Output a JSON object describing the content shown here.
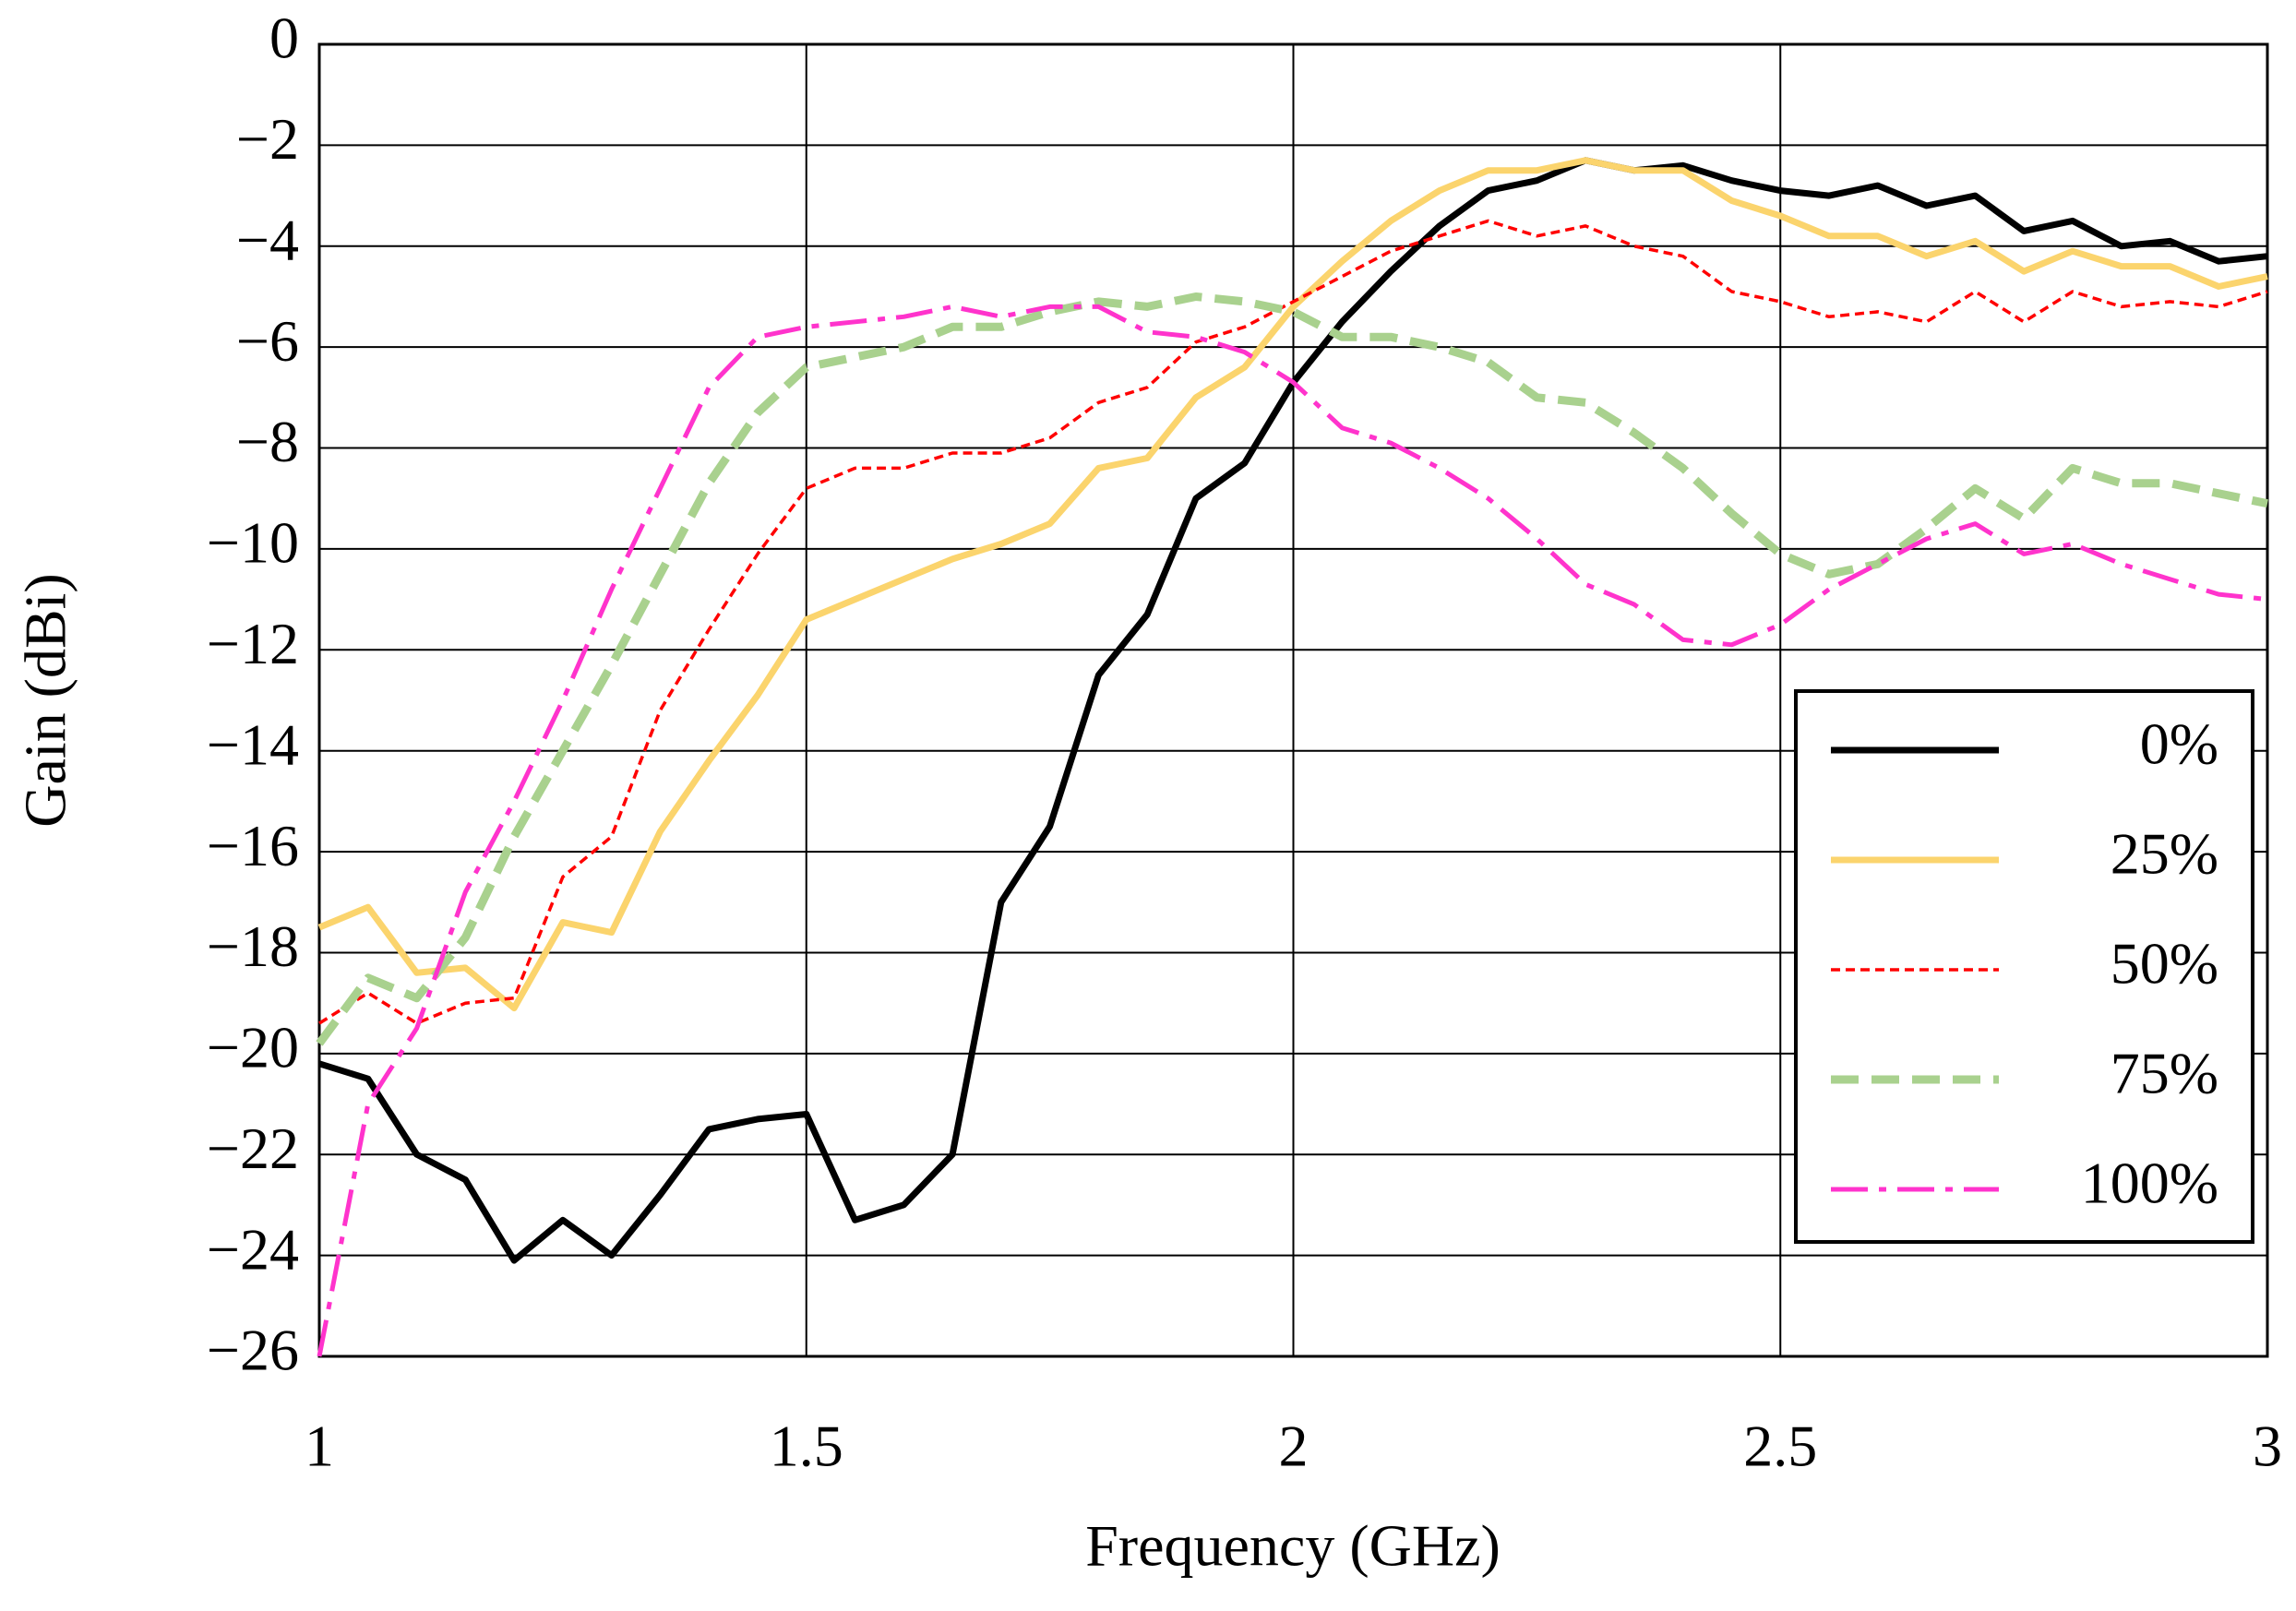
{
  "chart_data": {
    "type": "line",
    "x_label": "Frequency (GHz)",
    "y_label": "Gain (dBi)",
    "x": [
      1.0,
      1.05,
      1.1,
      1.15,
      1.2,
      1.25,
      1.3,
      1.35,
      1.4,
      1.45,
      1.5,
      1.55,
      1.6,
      1.65,
      1.7,
      1.75,
      1.8,
      1.85,
      1.9,
      1.95,
      2.0,
      2.05,
      2.1,
      2.15,
      2.2,
      2.25,
      2.3,
      2.35,
      2.4,
      2.45,
      2.5,
      2.55,
      2.6,
      2.65,
      2.7,
      2.75,
      2.8,
      2.85,
      2.9,
      2.95,
      3.0
    ],
    "series": [
      {
        "name": "0%",
        "color": "#000000",
        "dash": "solid",
        "values": [
          -20.2,
          -20.5,
          -22.0,
          -22.5,
          -24.1,
          -23.3,
          -24.0,
          -22.8,
          -21.5,
          -21.3,
          -21.2,
          -23.3,
          -23.0,
          -22.0,
          -17.0,
          -15.5,
          -12.5,
          -11.3,
          -9.0,
          -8.3,
          -6.7,
          -5.5,
          -4.5,
          -3.6,
          -2.9,
          -2.7,
          -2.3,
          -2.5,
          -2.4,
          -2.7,
          -2.9,
          -3.0,
          -2.8,
          -3.2,
          -3.0,
          -3.7,
          -3.5,
          -4.0,
          -3.9,
          -4.3,
          -4.2
        ]
      },
      {
        "name": "25%",
        "color": "#fbd46d",
        "dash": "solid",
        "values": [
          -17.5,
          -17.1,
          -18.4,
          -18.3,
          -19.1,
          -17.4,
          -17.6,
          -15.6,
          -14.2,
          -12.9,
          -11.4,
          -11.0,
          -10.6,
          -10.2,
          -9.9,
          -9.5,
          -8.4,
          -8.2,
          -7.0,
          -6.4,
          -5.2,
          -4.3,
          -3.5,
          -2.9,
          -2.5,
          -2.5,
          -2.3,
          -2.5,
          -2.5,
          -3.1,
          -3.4,
          -3.8,
          -3.8,
          -4.2,
          -3.9,
          -4.5,
          -4.1,
          -4.4,
          -4.4,
          -4.8,
          -4.6
        ]
      },
      {
        "name": "50%",
        "color": "#ff0000",
        "dash": "dotted",
        "values": [
          -19.4,
          -18.8,
          -19.4,
          -19.0,
          -18.9,
          -16.5,
          -15.7,
          -13.2,
          -11.6,
          -10.1,
          -8.8,
          -8.4,
          -8.4,
          -8.1,
          -8.1,
          -7.8,
          -7.1,
          -6.8,
          -5.9,
          -5.6,
          -5.1,
          -4.6,
          -4.1,
          -3.8,
          -3.5,
          -3.8,
          -3.6,
          -4.0,
          -4.2,
          -4.9,
          -5.1,
          -5.4,
          -5.3,
          -5.5,
          -4.9,
          -5.5,
          -4.9,
          -5.2,
          -5.1,
          -5.2,
          -4.9
        ]
      },
      {
        "name": "75%",
        "color": "#a9d18e",
        "dash": "dashed",
        "values": [
          -19.8,
          -18.5,
          -18.9,
          -17.7,
          -15.7,
          -14.0,
          -12.3,
          -10.5,
          -8.7,
          -7.3,
          -6.4,
          -6.2,
          -6.0,
          -5.6,
          -5.6,
          -5.3,
          -5.1,
          -5.2,
          -5.0,
          -5.1,
          -5.3,
          -5.8,
          -5.8,
          -6.0,
          -6.3,
          -7.0,
          -7.1,
          -7.7,
          -8.4,
          -9.3,
          -10.1,
          -10.5,
          -10.3,
          -9.6,
          -8.8,
          -9.4,
          -8.4,
          -8.7,
          -8.7,
          -8.9,
          -9.1
        ]
      },
      {
        "name": "100%",
        "color": "#ff33cc",
        "dash": "dashdot",
        "values": [
          -26.0,
          -21.0,
          -19.5,
          -16.8,
          -15.0,
          -13.0,
          -10.8,
          -8.8,
          -6.8,
          -5.8,
          -5.6,
          -5.5,
          -5.4,
          -5.2,
          -5.4,
          -5.2,
          -5.2,
          -5.7,
          -5.8,
          -6.1,
          -6.7,
          -7.6,
          -7.9,
          -8.4,
          -9.0,
          -9.8,
          -10.7,
          -11.1,
          -11.8,
          -11.9,
          -11.5,
          -10.8,
          -10.3,
          -9.8,
          -9.5,
          -10.1,
          -9.9,
          -10.3,
          -10.6,
          -10.9,
          -11.0
        ]
      }
    ],
    "xlim": [
      1,
      3
    ],
    "xticks": [
      1,
      1.5,
      2,
      2.5,
      3
    ],
    "ylim": [
      -26,
      0
    ],
    "yticks": [
      0,
      {
        "value": -2,
        "label": "−2"
      },
      {
        "value": -4,
        "label": "−4"
      },
      {
        "value": -6,
        "label": "−6"
      },
      {
        "value": -8,
        "label": "−8"
      },
      {
        "value": -10,
        "label": "−10"
      },
      {
        "value": -12,
        "label": "−12"
      },
      {
        "value": -14,
        "label": "−14"
      },
      {
        "value": -16,
        "label": "−16"
      },
      {
        "value": -18,
        "label": "−18"
      },
      {
        "value": -20,
        "label": "−20"
      },
      {
        "value": -22,
        "label": "−22"
      },
      {
        "value": -24,
        "label": "−24"
      },
      {
        "value": -26,
        "label": "−26"
      }
    ],
    "grid": true,
    "legend": "right"
  }
}
